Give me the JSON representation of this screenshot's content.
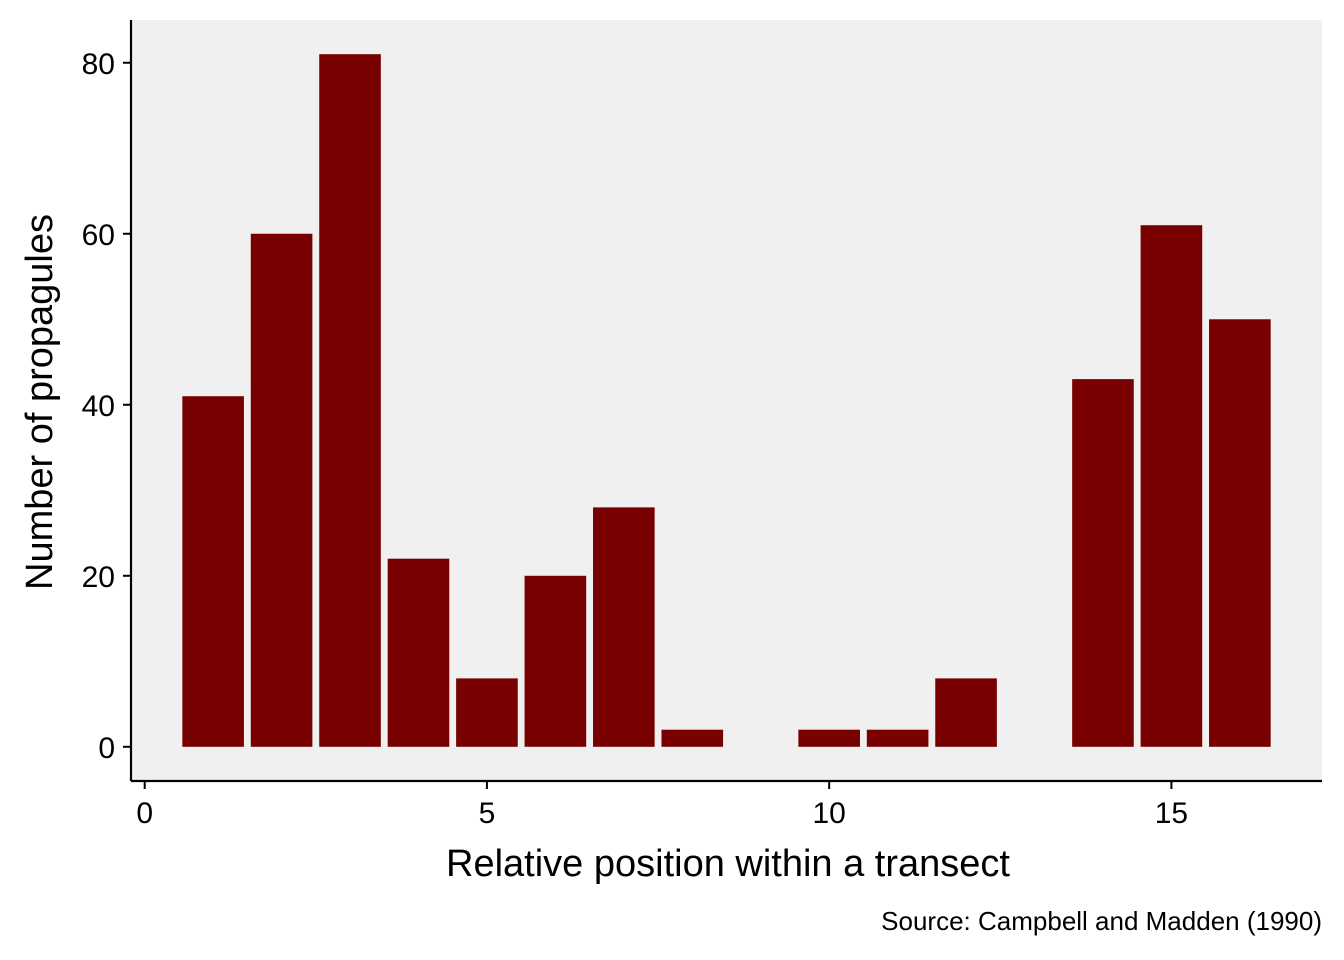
{
  "chart_data": {
    "type": "bar",
    "x": [
      1,
      2,
      3,
      4,
      5,
      6,
      7,
      8,
      9,
      10,
      11,
      12,
      13,
      14,
      15,
      16
    ],
    "values": [
      41,
      60,
      81,
      22,
      8,
      20,
      28,
      2,
      0,
      2,
      2,
      8,
      0,
      43,
      61,
      50
    ],
    "xlabel": "Relative position within a transect",
    "ylabel": "Number of propagules",
    "caption": "Source: Campbell and Madden (1990)",
    "xlim": [
      -0.2,
      17.2
    ],
    "ylim": [
      -4,
      85
    ],
    "xticks": [
      0,
      5,
      10,
      15
    ],
    "yticks": [
      0,
      20,
      40,
      60,
      80
    ],
    "grid": false,
    "legend": "none",
    "colors": {
      "bar": "#780000",
      "panel_background": "#f0f0f0",
      "axis": "#000000"
    }
  }
}
